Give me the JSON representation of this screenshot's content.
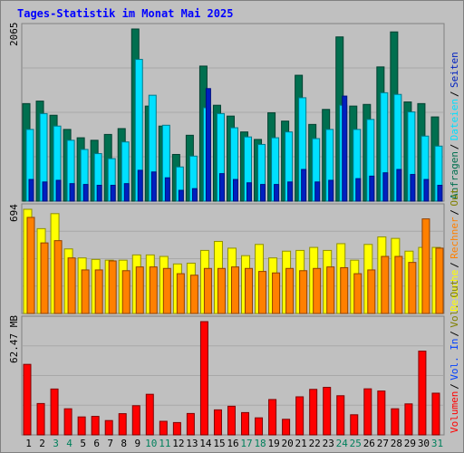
{
  "chart_data": {
    "type": "bar",
    "title": "Tages-Statistik im Monat Mai 2025",
    "categories": [
      "1",
      "2",
      "3",
      "4",
      "5",
      "6",
      "7",
      "8",
      "9",
      "10",
      "11",
      "12",
      "13",
      "14",
      "15",
      "16",
      "17",
      "18",
      "19",
      "20",
      "21",
      "22",
      "23",
      "24",
      "25",
      "26",
      "27",
      "28",
      "29",
      "30",
      "31"
    ],
    "weekend_days": [
      "3",
      "4",
      "10",
      "11",
      "17",
      "18",
      "24",
      "25",
      "31"
    ],
    "colors": {
      "anfragen": "#006f4f",
      "dateien": "#00e0ff",
      "seiten": "#0020c0",
      "besuche": "#ffff00",
      "rechner": "#ff8000",
      "volumen": "#ff0000",
      "weekday_label": "#000000",
      "weekend_label": "#00805c",
      "title": "#0000ff"
    },
    "panels": [
      {
        "name": "hits",
        "max_label": "2065",
        "ylim": [
          0,
          2065
        ],
        "legend": [
          {
            "text": "Anfragen",
            "color": "#006f4f"
          },
          {
            "text": "Dateien",
            "color": "#00e0ff"
          },
          {
            "text": "Seiten",
            "color": "#0020c0"
          }
        ],
        "series": [
          {
            "name": "Anfragen",
            "values": [
              1170,
              1200,
              1030,
              860,
              760,
              730,
              800,
              870,
              2065,
              1140,
              900,
              560,
              790,
              1620,
              1150,
              1020,
              830,
              740,
              1060,
              960,
              1510,
              920,
              1100,
              1970,
              1140,
              1160,
              1610,
              2030,
              1190,
              1170,
              1010
            ]
          },
          {
            "name": "Dateien",
            "values": [
              860,
              1050,
              900,
              730,
              620,
              570,
              510,
              710,
              1700,
              1270,
              910,
              410,
              540,
              1120,
              1050,
              880,
              770,
              680,
              760,
              830,
              1240,
              750,
              860,
              1150,
              860,
              980,
              1300,
              1280,
              1070,
              780,
              660
            ]
          },
          {
            "name": "Seiten",
            "values": [
              260,
              230,
              250,
              210,
              200,
              190,
              190,
              210,
              370,
              350,
              280,
              130,
              150,
              1350,
              330,
              260,
              220,
              200,
              200,
              230,
              380,
              230,
              250,
              1260,
              270,
              300,
              340,
              380,
              320,
              260,
              190
            ]
          }
        ]
      },
      {
        "name": "visits",
        "max_label": "694",
        "ylim": [
          0,
          694
        ],
        "legend": [
          {
            "text": "Besuche",
            "color": "#ffff00"
          },
          {
            "text": "Rechner",
            "color": "#ff8000"
          },
          {
            "text": "Out",
            "color": "#808000"
          }
        ],
        "series": [
          {
            "name": "Besuche",
            "values": [
              694,
              565,
              665,
              430,
              370,
              360,
              355,
              355,
              390,
              390,
              380,
              330,
              335,
              420,
              480,
              435,
              385,
              460,
              370,
              415,
              420,
              440,
              420,
              465,
              355,
              460,
              510,
              500,
              415,
              440,
              440
            ]
          },
          {
            "name": "Rechner",
            "values": [
              640,
              470,
              485,
              370,
              290,
              290,
              350,
              285,
              310,
              310,
              300,
              265,
              255,
              300,
              300,
              310,
              300,
              280,
              270,
              300,
              285,
              300,
              310,
              305,
              265,
              290,
              380,
              380,
              340,
              630,
              435
            ]
          }
        ]
      },
      {
        "name": "volume",
        "max_label": "62.47 MB",
        "ylim": [
          0,
          62.47
        ],
        "legend": [
          {
            "text": "Volumen",
            "color": "#ff0000"
          },
          {
            "text": "Vol. In",
            "color": "#0040ff"
          },
          {
            "text": "Vol. Out",
            "color": "#808000"
          }
        ],
        "series": [
          {
            "name": "Volumen",
            "values": [
              38.9,
              17.3,
              25.3,
              14.4,
              9.9,
              10.2,
              7.9,
              11.7,
              16.1,
              22.4,
              7.5,
              6.8,
              11.8,
              62.47,
              13.8,
              15.8,
              12.3,
              9.4,
              19.5,
              8.6,
              21.0,
              25.1,
              26.2,
              21.6,
              11.1,
              25.4,
              24.2,
              14.4,
              17.1,
              46.2,
              23.0
            ]
          }
        ]
      }
    ]
  }
}
